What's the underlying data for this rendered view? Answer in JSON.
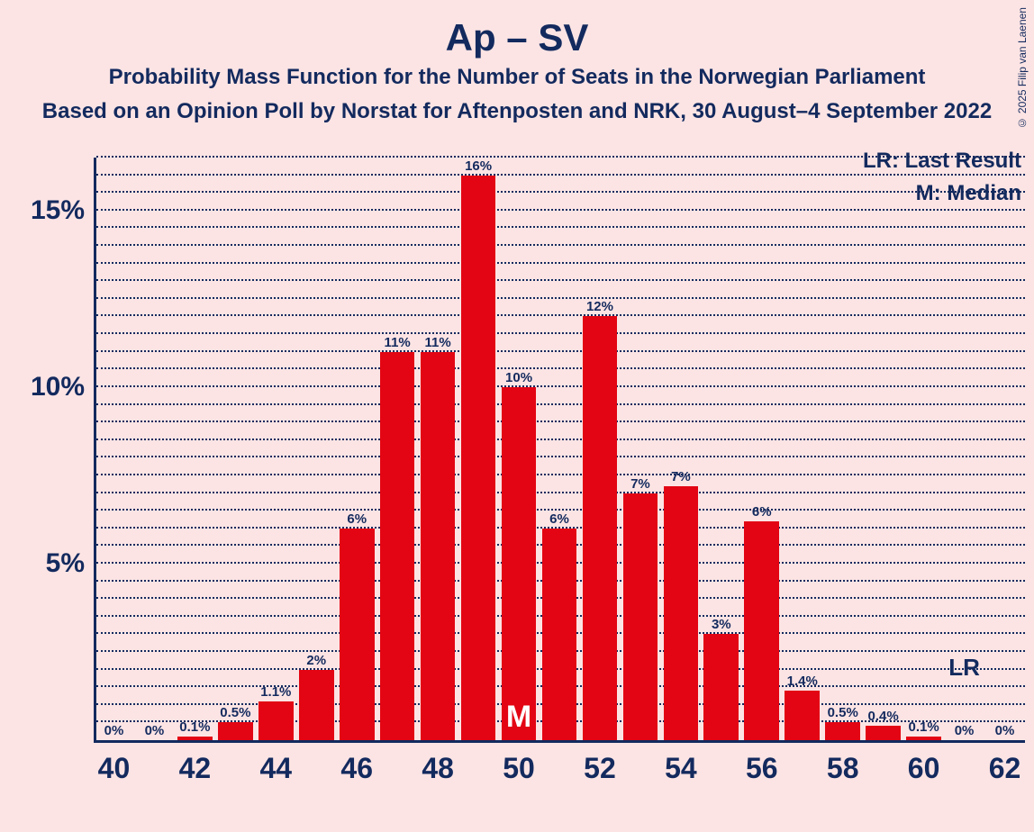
{
  "copyright": "© 2025 Filip van Laenen",
  "titles": {
    "main": "Ap – SV",
    "sub1": "Probability Mass Function for the Number of Seats in the Norwegian Parliament",
    "sub2": "Based on an Opinion Poll by Norstat for Aftenposten and NRK, 30 August–4 September 2022"
  },
  "legend": {
    "lr": "LR: Last Result",
    "m": "M: Median"
  },
  "chart": {
    "type": "histogram",
    "background_color": "#fce4e4",
    "axis_color": "#132a5e",
    "grid_color": "#132a5e",
    "bar_color": "#e30513",
    "text_color": "#132a5e",
    "median_text_color": "#ffffff",
    "y_max_display": 16.5,
    "y_major_ticks": [
      5,
      10,
      15
    ],
    "y_minor_step": 0.5,
    "x_min": 40,
    "x_max": 62,
    "x_tick_step": 2,
    "bar_width_ratio": 0.86,
    "median_seat": 50,
    "median_label": "M",
    "lr_seat": 61,
    "lr_label": "LR",
    "title_fontsize": 42,
    "subtitle_fontsize": 24,
    "ytick_fontsize": 30,
    "xtick_fontsize": 32,
    "barlabel_fontsize": 15,
    "bars": [
      {
        "seat": 40,
        "value": 0,
        "label": "0%"
      },
      {
        "seat": 41,
        "value": 0,
        "label": "0%"
      },
      {
        "seat": 42,
        "value": 0.1,
        "label": "0.1%"
      },
      {
        "seat": 43,
        "value": 0.5,
        "label": "0.5%"
      },
      {
        "seat": 44,
        "value": 1.1,
        "label": "1.1%"
      },
      {
        "seat": 45,
        "value": 2,
        "label": "2%"
      },
      {
        "seat": 46,
        "value": 6,
        "label": "6%"
      },
      {
        "seat": 47,
        "value": 11,
        "label": "11%"
      },
      {
        "seat": 48,
        "value": 11,
        "label": "11%"
      },
      {
        "seat": 49,
        "value": 16,
        "label": "16%"
      },
      {
        "seat": 50,
        "value": 10,
        "label": "10%"
      },
      {
        "seat": 51,
        "value": 6,
        "label": "6%"
      },
      {
        "seat": 52,
        "value": 12,
        "label": "12%"
      },
      {
        "seat": 53,
        "value": 7,
        "label": "7%"
      },
      {
        "seat": 54,
        "value": 7.2,
        "label": "7%"
      },
      {
        "seat": 55,
        "value": 3,
        "label": "3%"
      },
      {
        "seat": 56,
        "value": 6.2,
        "label": "6%"
      },
      {
        "seat": 57,
        "value": 1.4,
        "label": "1.4%"
      },
      {
        "seat": 58,
        "value": 0.5,
        "label": "0.5%"
      },
      {
        "seat": 59,
        "value": 0.4,
        "label": "0.4%"
      },
      {
        "seat": 60,
        "value": 0.1,
        "label": "0.1%"
      },
      {
        "seat": 61,
        "value": 0,
        "label": "0%"
      },
      {
        "seat": 62,
        "value": 0,
        "label": "0%"
      }
    ]
  }
}
